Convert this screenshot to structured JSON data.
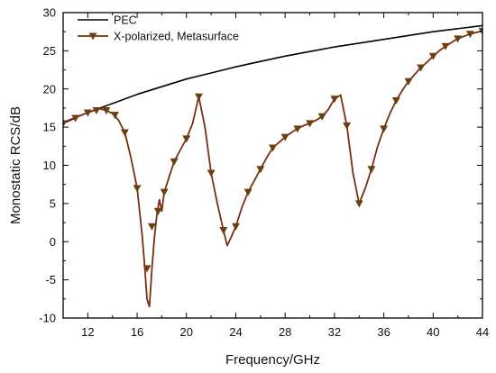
{
  "chart_data": {
    "type": "line",
    "xlabel": "Frequency/GHz",
    "ylabel": "Monostatic RCS/dB",
    "xlim": [
      10,
      44
    ],
    "ylim": [
      -10,
      30
    ],
    "xticks": [
      12,
      16,
      20,
      24,
      28,
      32,
      36,
      40,
      44
    ],
    "yticks": [
      -10,
      -5,
      0,
      5,
      10,
      15,
      20,
      25,
      30
    ],
    "grid": false,
    "legend_position": "top-left",
    "series": [
      {
        "name": "PEC",
        "color": "#000000",
        "marker": "none",
        "x": [
          10,
          12,
          14,
          16,
          18,
          20,
          22,
          24,
          26,
          28,
          30,
          32,
          34,
          36,
          38,
          40,
          42,
          44
        ],
        "y": [
          15.6,
          16.9,
          18.1,
          19.3,
          20.3,
          21.3,
          22.1,
          22.9,
          23.6,
          24.3,
          24.9,
          25.5,
          26.0,
          26.5,
          27.0,
          27.5,
          27.9,
          28.3
        ]
      },
      {
        "name": "X-polarized, Metasurface",
        "color": "#7a2e12",
        "marker": "triangle-down",
        "marker_color": "#6b4010",
        "x": [
          10,
          11,
          11.5,
          12,
          12.7,
          13,
          13.5,
          14,
          14.5,
          15,
          15.5,
          16,
          16.4,
          16.6,
          16.8,
          17,
          17.2,
          17.4,
          17.6,
          17.8,
          18,
          18.2,
          18.4,
          18.6,
          18.8,
          19,
          19.5,
          20,
          20.5,
          21,
          21.5,
          22,
          22.5,
          23,
          23.3,
          23.6,
          24,
          24.5,
          25,
          25.5,
          26,
          26.5,
          27,
          27.5,
          28,
          28.5,
          29,
          29.5,
          30,
          30.5,
          31,
          31.5,
          32,
          32.5,
          33,
          33.5,
          34,
          34.5,
          35,
          35.5,
          36,
          36.5,
          37,
          37.5,
          38,
          38.5,
          39,
          39.5,
          40,
          40.5,
          41,
          41.5,
          42,
          42.5,
          43,
          43.5,
          44
        ],
        "y": [
          15.5,
          16.2,
          16.6,
          16.9,
          17.3,
          17.4,
          17.2,
          16.8,
          15.9,
          14.3,
          11.0,
          7.0,
          1.0,
          -3.0,
          -7.5,
          -8.5,
          -3.5,
          0.5,
          3.5,
          5.5,
          4.0,
          6.5,
          7.5,
          8.5,
          9.5,
          10.5,
          12.0,
          13.5,
          15.5,
          19.0,
          15.0,
          9.0,
          5.0,
          1.5,
          -0.5,
          0.5,
          2.0,
          4.5,
          6.5,
          8.0,
          9.5,
          11.0,
          12.3,
          13.0,
          13.7,
          14.3,
          14.8,
          15.2,
          15.5,
          15.9,
          16.4,
          17.3,
          18.7,
          19.2,
          15.2,
          9.0,
          5.0,
          7.0,
          9.5,
          12.5,
          14.8,
          16.8,
          18.5,
          19.8,
          21.0,
          21.9,
          22.8,
          23.5,
          24.3,
          25.0,
          25.6,
          26.1,
          26.6,
          26.9,
          27.2,
          27.4,
          27.6
        ],
        "marker_x": [
          10,
          11,
          12,
          12.7,
          13.5,
          14.2,
          15,
          16,
          16.8,
          17.2,
          17.7,
          18.2,
          19,
          20,
          21,
          22,
          23,
          24,
          25,
          26,
          27,
          28,
          29,
          30,
          31,
          32,
          33,
          34,
          35,
          36,
          37,
          38,
          39,
          40,
          41,
          42,
          43,
          44
        ],
        "marker_y": [
          15.5,
          16.2,
          16.9,
          17.2,
          17.2,
          16.6,
          14.3,
          7.0,
          -3.5,
          2.0,
          4.0,
          6.5,
          10.5,
          13.5,
          19.0,
          9.0,
          1.5,
          2.0,
          6.5,
          9.5,
          12.3,
          13.7,
          14.8,
          15.5,
          16.4,
          18.7,
          15.2,
          5.0,
          9.5,
          14.8,
          18.5,
          21.0,
          22.8,
          24.3,
          25.6,
          26.6,
          27.2,
          27.6
        ]
      }
    ]
  }
}
